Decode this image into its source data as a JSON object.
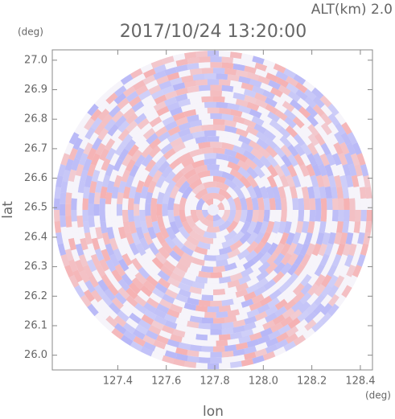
{
  "chart_data": {
    "type": "ppi",
    "annotation": "ALT(km) 2.0",
    "title": "2017/10/24 13:20:00",
    "xlabel": "lon",
    "ylabel": "lat",
    "xunit": "(deg)",
    "yunit": "(deg)",
    "xlim": [
      127.13,
      128.45
    ],
    "ylim": [
      25.95,
      27.035
    ],
    "xticks": [
      127.4,
      127.6,
      127.8,
      {
        "value": 128.0,
        "label": "128.0"
      },
      128.2,
      128.4
    ],
    "yticks": [
      {
        "value": 26.0,
        "label": "26.0"
      },
      26.1,
      26.2,
      26.3,
      26.4,
      26.5,
      26.6,
      26.7,
      26.8,
      26.9,
      {
        "value": 27.0,
        "label": "27.0"
      }
    ]
  }
}
